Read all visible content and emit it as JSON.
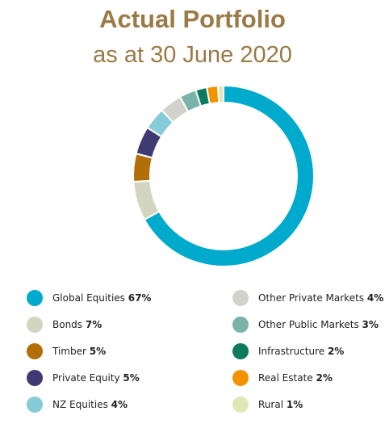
{
  "header": {
    "title": "Actual Portfolio",
    "subtitle": "as at 30 June 2020"
  },
  "chart_data": {
    "type": "pie",
    "variant": "donut",
    "title": "Actual Portfolio",
    "subtitle": "as at 30 June 2020",
    "legend_position": "bottom",
    "slices": [
      {
        "label": "Global Equities",
        "value": 67,
        "display": "67%",
        "color": "#00aacd"
      },
      {
        "label": "Bonds",
        "value": 7,
        "display": "7%",
        "color": "#d3d5c0"
      },
      {
        "label": "Timber",
        "value": 5,
        "display": "5%",
        "color": "#b26f08"
      },
      {
        "label": "Private Equity",
        "value": 5,
        "display": "5%",
        "color": "#3f3a74"
      },
      {
        "label": "NZ Equities",
        "value": 4,
        "display": "4%",
        "color": "#86ccd8"
      },
      {
        "label": "Other Private Markets",
        "value": 4,
        "display": "4%",
        "color": "#d2d2cc"
      },
      {
        "label": "Other Public Markets",
        "value": 3,
        "display": "3%",
        "color": "#7ab3a7"
      },
      {
        "label": "Infrastructure",
        "value": 2,
        "display": "2%",
        "color": "#0b7a5f"
      },
      {
        "label": "Real Estate",
        "value": 2,
        "display": "2%",
        "color": "#f39200"
      },
      {
        "label": "Rural",
        "value": 1,
        "display": "1%",
        "color": "#dfe8b5"
      }
    ]
  }
}
